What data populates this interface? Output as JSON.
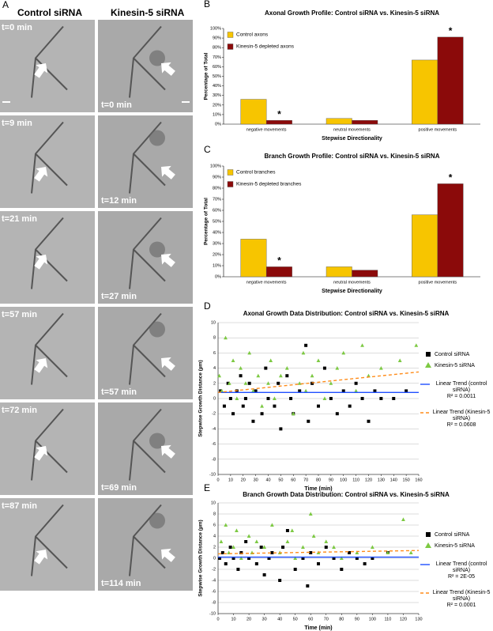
{
  "figure": {
    "panel_label": "A",
    "columns": [
      "Control siRNA",
      "Kinesin-5 siRNA"
    ],
    "left_times": [
      "t=0 min",
      "t=9 min",
      "t=21 min",
      "t=57 min",
      "t=72 min",
      "t=87 min"
    ],
    "right_times": [
      "t=0 min",
      "t=12 min",
      "t=27 min",
      "t=57 min",
      "t=69 min",
      "t=114 min"
    ]
  },
  "chart_data": [
    {
      "type": "bar",
      "panel": "B",
      "title": "Axonal Growth Profile: Control siRNA vs. Kinesin-5 siRNA",
      "x_label": "Stepwise Directionality",
      "y_label": "Percentage of Total",
      "categories": [
        "negative movements",
        "neutral movements",
        "positive movements"
      ],
      "series": [
        {
          "name": "Control axons",
          "color": "#f7c500",
          "values": [
            26,
            6,
            67
          ]
        },
        {
          "name": "Kinesin-5 depleted axons",
          "color": "#8b0a0a",
          "values": [
            4,
            4,
            91
          ],
          "significance": [
            "*",
            null,
            "*"
          ]
        }
      ],
      "ylim": [
        0,
        100
      ],
      "yticks": [
        {
          "value": 0,
          "label": "0%"
        },
        {
          "value": 10,
          "label": "10%"
        },
        {
          "value": 20,
          "label": "20%"
        },
        {
          "value": 30,
          "label": "30%"
        },
        {
          "value": 40,
          "label": "40%"
        },
        {
          "value": 50,
          "label": "50%"
        },
        {
          "value": 60,
          "label": "60%"
        },
        {
          "value": 70,
          "label": "70%"
        },
        {
          "value": 80,
          "label": "80%"
        },
        {
          "value": 90,
          "label": "90%"
        },
        {
          "value": 100,
          "label": "100%"
        }
      ],
      "grid": false
    },
    {
      "type": "bar",
      "panel": "C",
      "title": "Branch Growth Profile: Control siRNA vs. Kinesin-5 siRNA",
      "x_label": "Stepwise Directionality",
      "y_label": "Percentage of Total",
      "categories": [
        "negative movements",
        "neutral movements",
        "positive movements"
      ],
      "series": [
        {
          "name": "Control branches",
          "color": "#f7c500",
          "values": [
            34,
            9,
            56
          ]
        },
        {
          "name": "Kinesin-5 depleted branches",
          "color": "#8b0a0a",
          "values": [
            9,
            6,
            84
          ],
          "significance": [
            "*",
            null,
            "*"
          ]
        }
      ],
      "ylim": [
        0,
        100
      ],
      "yticks": [
        {
          "value": 0,
          "label": "0%"
        },
        {
          "value": 10,
          "label": "10%"
        },
        {
          "value": 20,
          "label": "20%"
        },
        {
          "value": 30,
          "label": "30%"
        },
        {
          "value": 40,
          "label": "40%"
        },
        {
          "value": 50,
          "label": "50%"
        },
        {
          "value": 60,
          "label": "60%"
        },
        {
          "value": 70,
          "label": "70%"
        },
        {
          "value": 80,
          "label": "80%"
        },
        {
          "value": 90,
          "label": "90%"
        },
        {
          "value": 100,
          "label": "100%"
        }
      ],
      "grid": false
    },
    {
      "type": "scatter",
      "panel": "D",
      "title": "Axonal Growth Data Distribution: Control siRNA vs. Kinesin-5 siRNA",
      "x_label": "Time (min)",
      "y_label": "Stepwise Growth Distance (µm)",
      "series": [
        {
          "name": "Control siRNA",
          "mark": "square",
          "color": "#000000",
          "x": [
            2,
            5,
            8,
            10,
            12,
            15,
            18,
            20,
            22,
            25,
            28,
            30,
            35,
            38,
            40,
            45,
            48,
            50,
            55,
            58,
            60,
            65,
            70,
            72,
            75,
            80,
            85,
            90,
            95,
            100,
            105,
            110,
            115,
            120,
            125,
            130,
            140,
            150
          ],
          "values": [
            1,
            -1,
            2,
            0,
            -2,
            1,
            3,
            -1,
            0,
            2,
            -3,
            1,
            -2,
            4,
            0,
            -1,
            2,
            -4,
            3,
            0,
            -2,
            1,
            7,
            -3,
            2,
            -1,
            4,
            0,
            -2,
            1,
            -1,
            2,
            0,
            -3,
            1,
            0,
            0,
            1
          ]
        },
        {
          "name": "Kinesin-5 siRNA",
          "mark": "triangle",
          "color": "#7dc943",
          "x": [
            1,
            3,
            6,
            9,
            12,
            15,
            18,
            22,
            25,
            28,
            32,
            35,
            40,
            42,
            45,
            50,
            55,
            60,
            65,
            68,
            70,
            75,
            80,
            85,
            90,
            95,
            100,
            110,
            115,
            120,
            130,
            145,
            158
          ],
          "values": [
            3,
            1,
            8,
            2,
            5,
            0,
            4,
            2,
            6,
            1,
            3,
            -1,
            2,
            5,
            0,
            3,
            4,
            -2,
            2,
            6,
            1,
            3,
            5,
            0,
            2,
            4,
            6,
            1,
            7,
            3,
            4,
            5,
            7
          ]
        },
        {
          "name": "Linear Trend (control siRNA)",
          "mark": "line",
          "color": "#1f4fff",
          "x": [
            0,
            160
          ],
          "values": [
            0.8,
            0.8
          ],
          "r_squared": "R² = 0.0011"
        },
        {
          "name": "Linear Trend (Kinesin-5 siRNA)",
          "mark": "dashed-line",
          "color": "#ff8c1a",
          "x": [
            0,
            160
          ],
          "values": [
            0.8,
            3.5
          ],
          "r_squared": "R² = 0.0608"
        }
      ],
      "xlim": [
        0,
        160
      ],
      "xticks": [
        0,
        10,
        20,
        30,
        40,
        50,
        60,
        70,
        80,
        90,
        100,
        110,
        120,
        130,
        140,
        150,
        160
      ],
      "ylim": [
        -10,
        10
      ],
      "yticks": [
        -10,
        -8,
        -6,
        -4,
        -2,
        0,
        2,
        4,
        6,
        8,
        10
      ],
      "grid": true
    },
    {
      "type": "scatter",
      "panel": "E",
      "title": "Branch Growth Data Distribution: Control siRNA vs. Kinesin-5 siRNA",
      "x_label": "Time (min)",
      "y_label": "Stepwise Growth Distance (µm)",
      "series": [
        {
          "name": "Control siRNA",
          "mark": "square",
          "color": "#000000",
          "x": [
            1,
            3,
            5,
            8,
            10,
            13,
            15,
            18,
            20,
            25,
            28,
            30,
            33,
            35,
            40,
            42,
            45,
            50,
            55,
            58,
            60,
            65,
            70,
            75,
            80,
            85,
            90,
            95,
            100,
            110
          ],
          "values": [
            0,
            1,
            -1,
            2,
            0,
            -2,
            1,
            3,
            0,
            -1,
            2,
            -3,
            0,
            1,
            -4,
            2,
            5,
            -2,
            0,
            -5,
            1,
            -1,
            2,
            0,
            -2,
            1,
            0,
            -1,
            0,
            1
          ]
        },
        {
          "name": "Kinesin-5 siRNA",
          "mark": "triangle",
          "color": "#7dc943",
          "x": [
            2,
            5,
            7,
            10,
            12,
            15,
            20,
            22,
            25,
            30,
            35,
            40,
            45,
            48,
            50,
            55,
            60,
            62,
            65,
            70,
            75,
            80,
            90,
            100,
            110,
            120,
            125
          ],
          "values": [
            3,
            6,
            1,
            2,
            5,
            0,
            4,
            1,
            3,
            2,
            6,
            1,
            3,
            5,
            0,
            2,
            8,
            4,
            1,
            3,
            2,
            0,
            1,
            2,
            1,
            7,
            1
          ]
        },
        {
          "name": "Linear Trend (control siRNA)",
          "mark": "line",
          "color": "#1f4fff",
          "x": [
            0,
            130
          ],
          "values": [
            0.2,
            0.2
          ],
          "r_squared": "R² = 2E-05"
        },
        {
          "name": "Linear Trend (Kinesin-5 siRNA)",
          "mark": "dashed-line",
          "color": "#ff8c1a",
          "x": [
            0,
            130
          ],
          "values": [
            0.8,
            1.4
          ],
          "r_squared": "R² = 0.0001"
        }
      ],
      "xlim": [
        0,
        130
      ],
      "xticks": [
        0,
        10,
        20,
        30,
        40,
        50,
        60,
        70,
        80,
        90,
        100,
        110,
        120,
        130
      ],
      "ylim": [
        -10,
        10
      ],
      "yticks": [
        -10,
        -8,
        -6,
        -4,
        -2,
        0,
        2,
        4,
        6,
        8,
        10
      ],
      "grid": true
    }
  ]
}
